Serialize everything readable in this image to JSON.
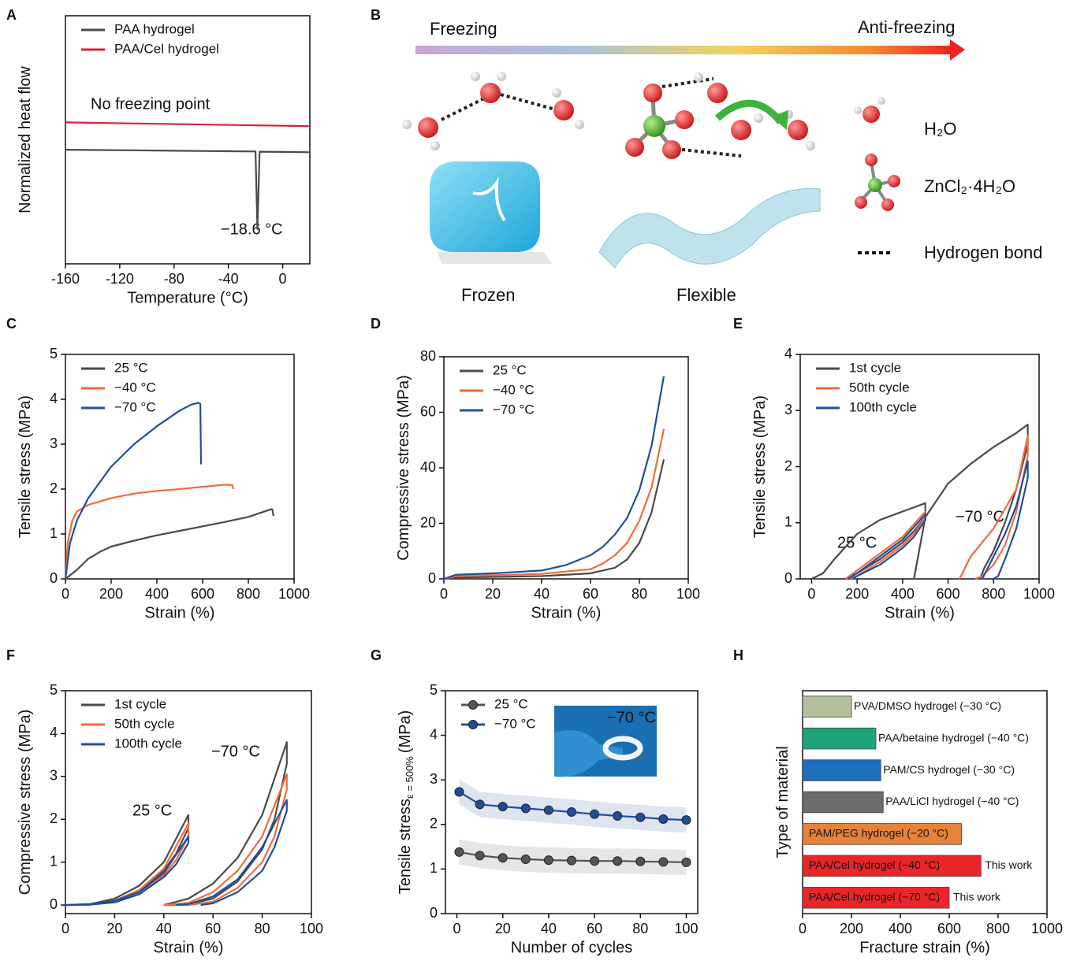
{
  "panels": [
    "A",
    "B",
    "C",
    "D",
    "E",
    "F",
    "G",
    "H"
  ],
  "diagram": {
    "arrow_start": "Freezing",
    "arrow_end": "Anti-freezing",
    "captions": [
      "Frozen",
      "Flexible"
    ],
    "legend": [
      "H₂O",
      "ZnCl₂·4H₂O",
      "Hydrogen bond"
    ]
  },
  "chart_data": [
    {
      "type": "line",
      "x_label": "Temperature (°C)",
      "y_label": "Normalized heat flow",
      "xlim": [
        -160,
        20
      ],
      "xticks": [
        -160,
        -120,
        -80,
        -40,
        0
      ],
      "ylim": [
        0,
        10
      ],
      "annotations": [
        "No freezing point",
        "−18.6 °C"
      ],
      "series": [
        {
          "name": "PAA hydrogel",
          "color": "#4a4a4a",
          "x": [
            -160,
            -120,
            -80,
            -40,
            -20,
            -18.6,
            -17,
            0,
            20
          ],
          "values": [
            4.6,
            4.58,
            4.56,
            4.54,
            4.53,
            1.4,
            4.52,
            4.51,
            4.5
          ]
        },
        {
          "name": "PAA/Cel hydrogel",
          "color": "#d9223a",
          "x": [
            -160,
            20
          ],
          "values": [
            5.7,
            5.55
          ]
        }
      ]
    },
    {
      "type": "line",
      "x_label": "Strain (%)",
      "y_label": "Tensile stress (MPa)",
      "xlim": [
        0,
        1000
      ],
      "xticks": [
        0,
        200,
        400,
        600,
        800,
        1000
      ],
      "ylim": [
        0,
        5
      ],
      "yticks": [
        0,
        1,
        2,
        3,
        4,
        5
      ],
      "series": [
        {
          "name": "25 °C",
          "color": "#4a4a4a",
          "x": [
            0,
            50,
            100,
            150,
            200,
            300,
            400,
            500,
            600,
            700,
            800,
            900,
            905,
            910
          ],
          "values": [
            0,
            0.2,
            0.45,
            0.6,
            0.72,
            0.85,
            0.97,
            1.07,
            1.17,
            1.27,
            1.38,
            1.55,
            1.55,
            1.4
          ]
        },
        {
          "name": "−40 °C",
          "color": "#f26b3a",
          "x": [
            0,
            10,
            30,
            50,
            100,
            200,
            300,
            400,
            500,
            600,
            700,
            730,
            735
          ],
          "values": [
            0,
            0.8,
            1.3,
            1.5,
            1.65,
            1.8,
            1.9,
            1.96,
            2.0,
            2.05,
            2.1,
            2.08,
            2.0
          ]
        },
        {
          "name": "−70 °C",
          "color": "#1f4e9c",
          "x": [
            0,
            20,
            50,
            100,
            200,
            300,
            400,
            500,
            550,
            580,
            590,
            593
          ],
          "values": [
            0,
            0.8,
            1.3,
            1.8,
            2.5,
            3.0,
            3.4,
            3.75,
            3.88,
            3.92,
            3.9,
            2.55
          ]
        }
      ]
    },
    {
      "type": "line",
      "x_label": "Strain (%)",
      "y_label": "Compressive stress (MPa)",
      "xlim": [
        0,
        100
      ],
      "xticks": [
        0,
        20,
        40,
        60,
        80,
        100
      ],
      "ylim": [
        0,
        80
      ],
      "yticks": [
        0,
        20,
        40,
        60,
        80
      ],
      "series": [
        {
          "name": "25 °C",
          "color": "#4a4a4a",
          "x": [
            0,
            5,
            20,
            40,
            60,
            70,
            75,
            80,
            85,
            90
          ],
          "values": [
            0,
            0.5,
            0.7,
            1,
            2,
            4,
            7,
            13,
            24,
            43
          ]
        },
        {
          "name": "−40 °C",
          "color": "#f26b3a",
          "x": [
            0,
            5,
            20,
            40,
            60,
            65,
            70,
            75,
            80,
            85,
            90
          ],
          "values": [
            0,
            1,
            1.3,
            1.8,
            3.5,
            5.5,
            8.5,
            13,
            21,
            33,
            54
          ]
        },
        {
          "name": "−70 °C",
          "color": "#1f4e9c",
          "x": [
            0,
            5,
            20,
            40,
            50,
            60,
            65,
            70,
            75,
            80,
            85,
            90
          ],
          "values": [
            0,
            1.5,
            2,
            3,
            5,
            8.5,
            11.5,
            16,
            22,
            32,
            48,
            73
          ]
        }
      ]
    },
    {
      "type": "line",
      "x_label": "Strain (%)",
      "y_label": "Tensile stress (MPa)",
      "xlim": [
        -50,
        1000
      ],
      "xticks": [
        0,
        200,
        400,
        600,
        800,
        1000
      ],
      "ylim": [
        0,
        4
      ],
      "yticks": [
        0,
        1,
        2,
        3,
        4
      ],
      "annotations": [
        "25 °C",
        "−70 °C"
      ],
      "series": [
        {
          "name": "1st cycle",
          "color": "#4a4a4a",
          "x": [
            0,
            50,
            100,
            200,
            300,
            400,
            500,
            500,
            450,
            400,
            300,
            200,
            150,
            null,
            450,
            500,
            600,
            700,
            800,
            900,
            950,
            950,
            900,
            850,
            800,
            760,
            740
          ],
          "values": [
            0,
            0.1,
            0.35,
            0.8,
            1.05,
            1.2,
            1.35,
            1.1,
            0.85,
            0.65,
            0.35,
            0.1,
            0,
            null,
            0,
            1.1,
            1.7,
            2.05,
            2.35,
            2.6,
            2.75,
            2.4,
            1.6,
            1.0,
            0.5,
            0.2,
            0
          ]
        },
        {
          "name": "50th cycle",
          "color": "#f26b3a",
          "x": [
            150,
            200,
            300,
            400,
            500,
            500,
            450,
            400,
            300,
            200,
            170,
            null,
            650,
            700,
            800,
            900,
            950,
            950,
            900,
            850,
            800,
            750,
            720
          ],
          "values": [
            0,
            0.15,
            0.45,
            0.75,
            1.2,
            1.1,
            0.8,
            0.6,
            0.3,
            0.05,
            0,
            null,
            0,
            0.4,
            0.9,
            1.6,
            2.55,
            2.2,
            1.2,
            0.6,
            0.25,
            0.05,
            0
          ]
        },
        {
          "name": "100th cycle",
          "color": "#1f4e9c",
          "x": [
            160,
            200,
            300,
            400,
            500,
            500,
            450,
            400,
            300,
            200,
            180,
            null,
            750,
            800,
            850,
            900,
            950,
            950,
            900,
            850,
            820,
            800
          ],
          "values": [
            0,
            0.1,
            0.4,
            0.7,
            1.15,
            1.05,
            0.75,
            0.55,
            0.25,
            0.05,
            0,
            null,
            0,
            0.4,
            0.8,
            1.3,
            2.1,
            1.8,
            0.9,
            0.35,
            0.05,
            0
          ]
        }
      ]
    },
    {
      "type": "line",
      "x_label": "Strain (%)",
      "y_label": "Compressive stress (MPa)",
      "xlim": [
        0,
        100
      ],
      "xticks": [
        0,
        20,
        40,
        60,
        80,
        100
      ],
      "ylim": [
        -0.2,
        5
      ],
      "yticks": [
        0,
        1,
        2,
        3,
        4,
        5
      ],
      "annotations": [
        "25 °C",
        "−70 °C"
      ],
      "series": [
        {
          "name": "1st cycle",
          "color": "#4a4a4a",
          "x": [
            0,
            10,
            20,
            30,
            40,
            50,
            50,
            45,
            40,
            30,
            20,
            10,
            0,
            null,
            40,
            50,
            60,
            70,
            80,
            90,
            90,
            85,
            80,
            70,
            60,
            50,
            40
          ],
          "values": [
            0,
            0.02,
            0.15,
            0.45,
            1.0,
            2.1,
            1.8,
            1.2,
            0.8,
            0.35,
            0.1,
            0.01,
            0,
            null,
            0,
            0.15,
            0.5,
            1.1,
            2.1,
            3.8,
            3.3,
            2.0,
            1.3,
            0.55,
            0.15,
            0.02,
            0
          ]
        },
        {
          "name": "50th cycle",
          "color": "#f26b3a",
          "x": [
            0,
            10,
            20,
            30,
            40,
            50,
            50,
            45,
            40,
            30,
            20,
            10,
            0,
            null,
            40,
            50,
            60,
            70,
            80,
            90,
            90,
            85,
            80,
            70,
            60,
            50,
            45
          ],
          "values": [
            0,
            0.02,
            0.1,
            0.35,
            0.85,
            1.9,
            1.6,
            1.05,
            0.7,
            0.3,
            0.08,
            0.01,
            0,
            null,
            0,
            0.05,
            0.3,
            0.8,
            1.6,
            3.05,
            2.7,
            1.6,
            1.0,
            0.4,
            0.08,
            0,
            0
          ]
        },
        {
          "name": "100th cycle",
          "color": "#1f4e9c",
          "x": [
            0,
            10,
            20,
            30,
            40,
            50,
            50,
            45,
            40,
            30,
            20,
            10,
            0,
            null,
            45,
            50,
            60,
            70,
            80,
            90,
            90,
            85,
            80,
            70,
            60,
            55
          ],
          "values": [
            0,
            0.02,
            0.1,
            0.3,
            0.75,
            1.6,
            1.45,
            0.95,
            0.65,
            0.25,
            0.06,
            0.01,
            0,
            null,
            0,
            0.02,
            0.2,
            0.6,
            1.35,
            2.45,
            2.2,
            1.35,
            0.8,
            0.3,
            0.04,
            0
          ]
        }
      ]
    },
    {
      "type": "line",
      "markers": true,
      "x_label": "Number of cycles",
      "y_label": "Tensile stress",
      "y_label_sub": "ε = 500%",
      "y_label_unit": "(MPa)",
      "xlim": [
        -5,
        105
      ],
      "xticks": [
        0,
        20,
        40,
        60,
        80,
        100
      ],
      "ylim": [
        0,
        5
      ],
      "yticks": [
        0,
        1,
        2,
        3,
        4,
        5
      ],
      "annotations": [
        "−70 °C"
      ],
      "series": [
        {
          "name": "25 °C",
          "color": "#555555",
          "x": [
            1,
            10,
            20,
            30,
            40,
            50,
            60,
            70,
            80,
            90,
            100
          ],
          "values": [
            1.38,
            1.3,
            1.25,
            1.22,
            1.2,
            1.19,
            1.18,
            1.18,
            1.17,
            1.16,
            1.15
          ]
        },
        {
          "name": "−70 °C",
          "color": "#1f4e9c",
          "x": [
            1,
            10,
            20,
            30,
            40,
            50,
            60,
            70,
            80,
            90,
            100
          ],
          "values": [
            2.73,
            2.45,
            2.4,
            2.36,
            2.32,
            2.28,
            2.23,
            2.19,
            2.16,
            2.12,
            2.1
          ]
        }
      ]
    },
    {
      "type": "hbar",
      "x_label": "Fracture strain (%)",
      "y_label": "Type of material",
      "xlim": [
        0,
        1000
      ],
      "xticks": [
        0,
        200,
        400,
        600,
        800,
        1000
      ],
      "categories": [
        "PVA/DMSO hydrogel (−30 °C)",
        "PAA/betaine hydrogel (−40 °C)",
        "PAM/CS hydrogel (−30 °C)",
        "PAA/LiCl hydrogel (−40 °C)",
        "PAM/PEG hydrogel (−20 °C)",
        "PAA/Cel hydrogel (−40 °C)",
        "PAA/Cel hydrogel (−70 °C)"
      ],
      "values": [
        200,
        300,
        320,
        330,
        650,
        730,
        600
      ],
      "colors": [
        "#b4c09c",
        "#1fa37a",
        "#1f6fbf",
        "#6b6b6b",
        "#e8823a",
        "#e8262a",
        "#e8262a"
      ],
      "value_notes": [
        null,
        null,
        null,
        null,
        null,
        "This work",
        "This work"
      ]
    }
  ]
}
